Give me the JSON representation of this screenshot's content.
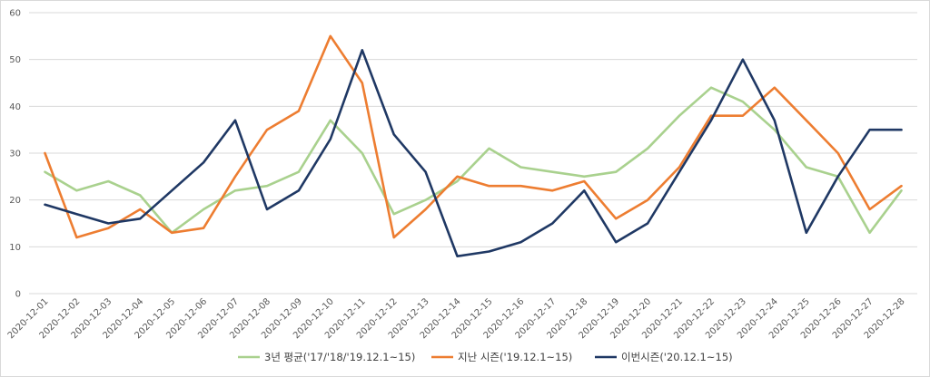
{
  "chart_data": {
    "type": "line",
    "title": "",
    "xlabel": "",
    "ylabel": "",
    "ylim": [
      0,
      60
    ],
    "yticks": [
      0,
      10,
      20,
      30,
      40,
      50,
      60
    ],
    "grid": "horizontal",
    "legend": "bottom",
    "categories": [
      "2020-12-01",
      "2020-12-02",
      "2020-12-03",
      "2020-12-04",
      "2020-12-05",
      "2020-12-06",
      "2020-12-07",
      "2020-12-08",
      "2020-12-09",
      "2020-12-10",
      "2020-12-11",
      "2020-12-12",
      "2020-12-13",
      "2020-12-14",
      "2020-12-15",
      "2020-12-16",
      "2020-12-17",
      "2020-12-18",
      "2020-12-19",
      "2020-12-20",
      "2020-12-21",
      "2020-12-22",
      "2020-12-23",
      "2020-12-24",
      "2020-12-25",
      "2020-12-26",
      "2020-12-27",
      "2020-12-28"
    ],
    "series": [
      {
        "name": "3년 평균('17/'18/'19.12.1~15)",
        "color": "#a9d18e",
        "values": [
          26,
          22,
          24,
          21,
          13,
          18,
          22,
          23,
          26,
          37,
          30,
          17,
          20,
          24,
          31,
          27,
          26,
          25,
          26,
          31,
          38,
          44,
          41,
          35,
          27,
          25,
          13,
          22
        ]
      },
      {
        "name": "지난 시즌('19.12.1~15)",
        "color": "#ed7d31",
        "values": [
          30,
          12,
          14,
          18,
          13,
          14,
          25,
          35,
          39,
          55,
          45,
          12,
          18,
          25,
          23,
          23,
          22,
          24,
          16,
          20,
          27,
          38,
          38,
          44,
          37,
          30,
          18,
          23
        ]
      },
      {
        "name": "이번시즌('20.12.1~15)",
        "color": "#1f3864",
        "values": [
          19,
          17,
          15,
          16,
          22,
          28,
          37,
          18,
          22,
          33,
          52,
          34,
          26,
          8,
          9,
          11,
          15,
          22,
          11,
          15,
          26,
          37,
          50,
          37,
          13,
          25,
          35,
          35
        ]
      }
    ]
  }
}
